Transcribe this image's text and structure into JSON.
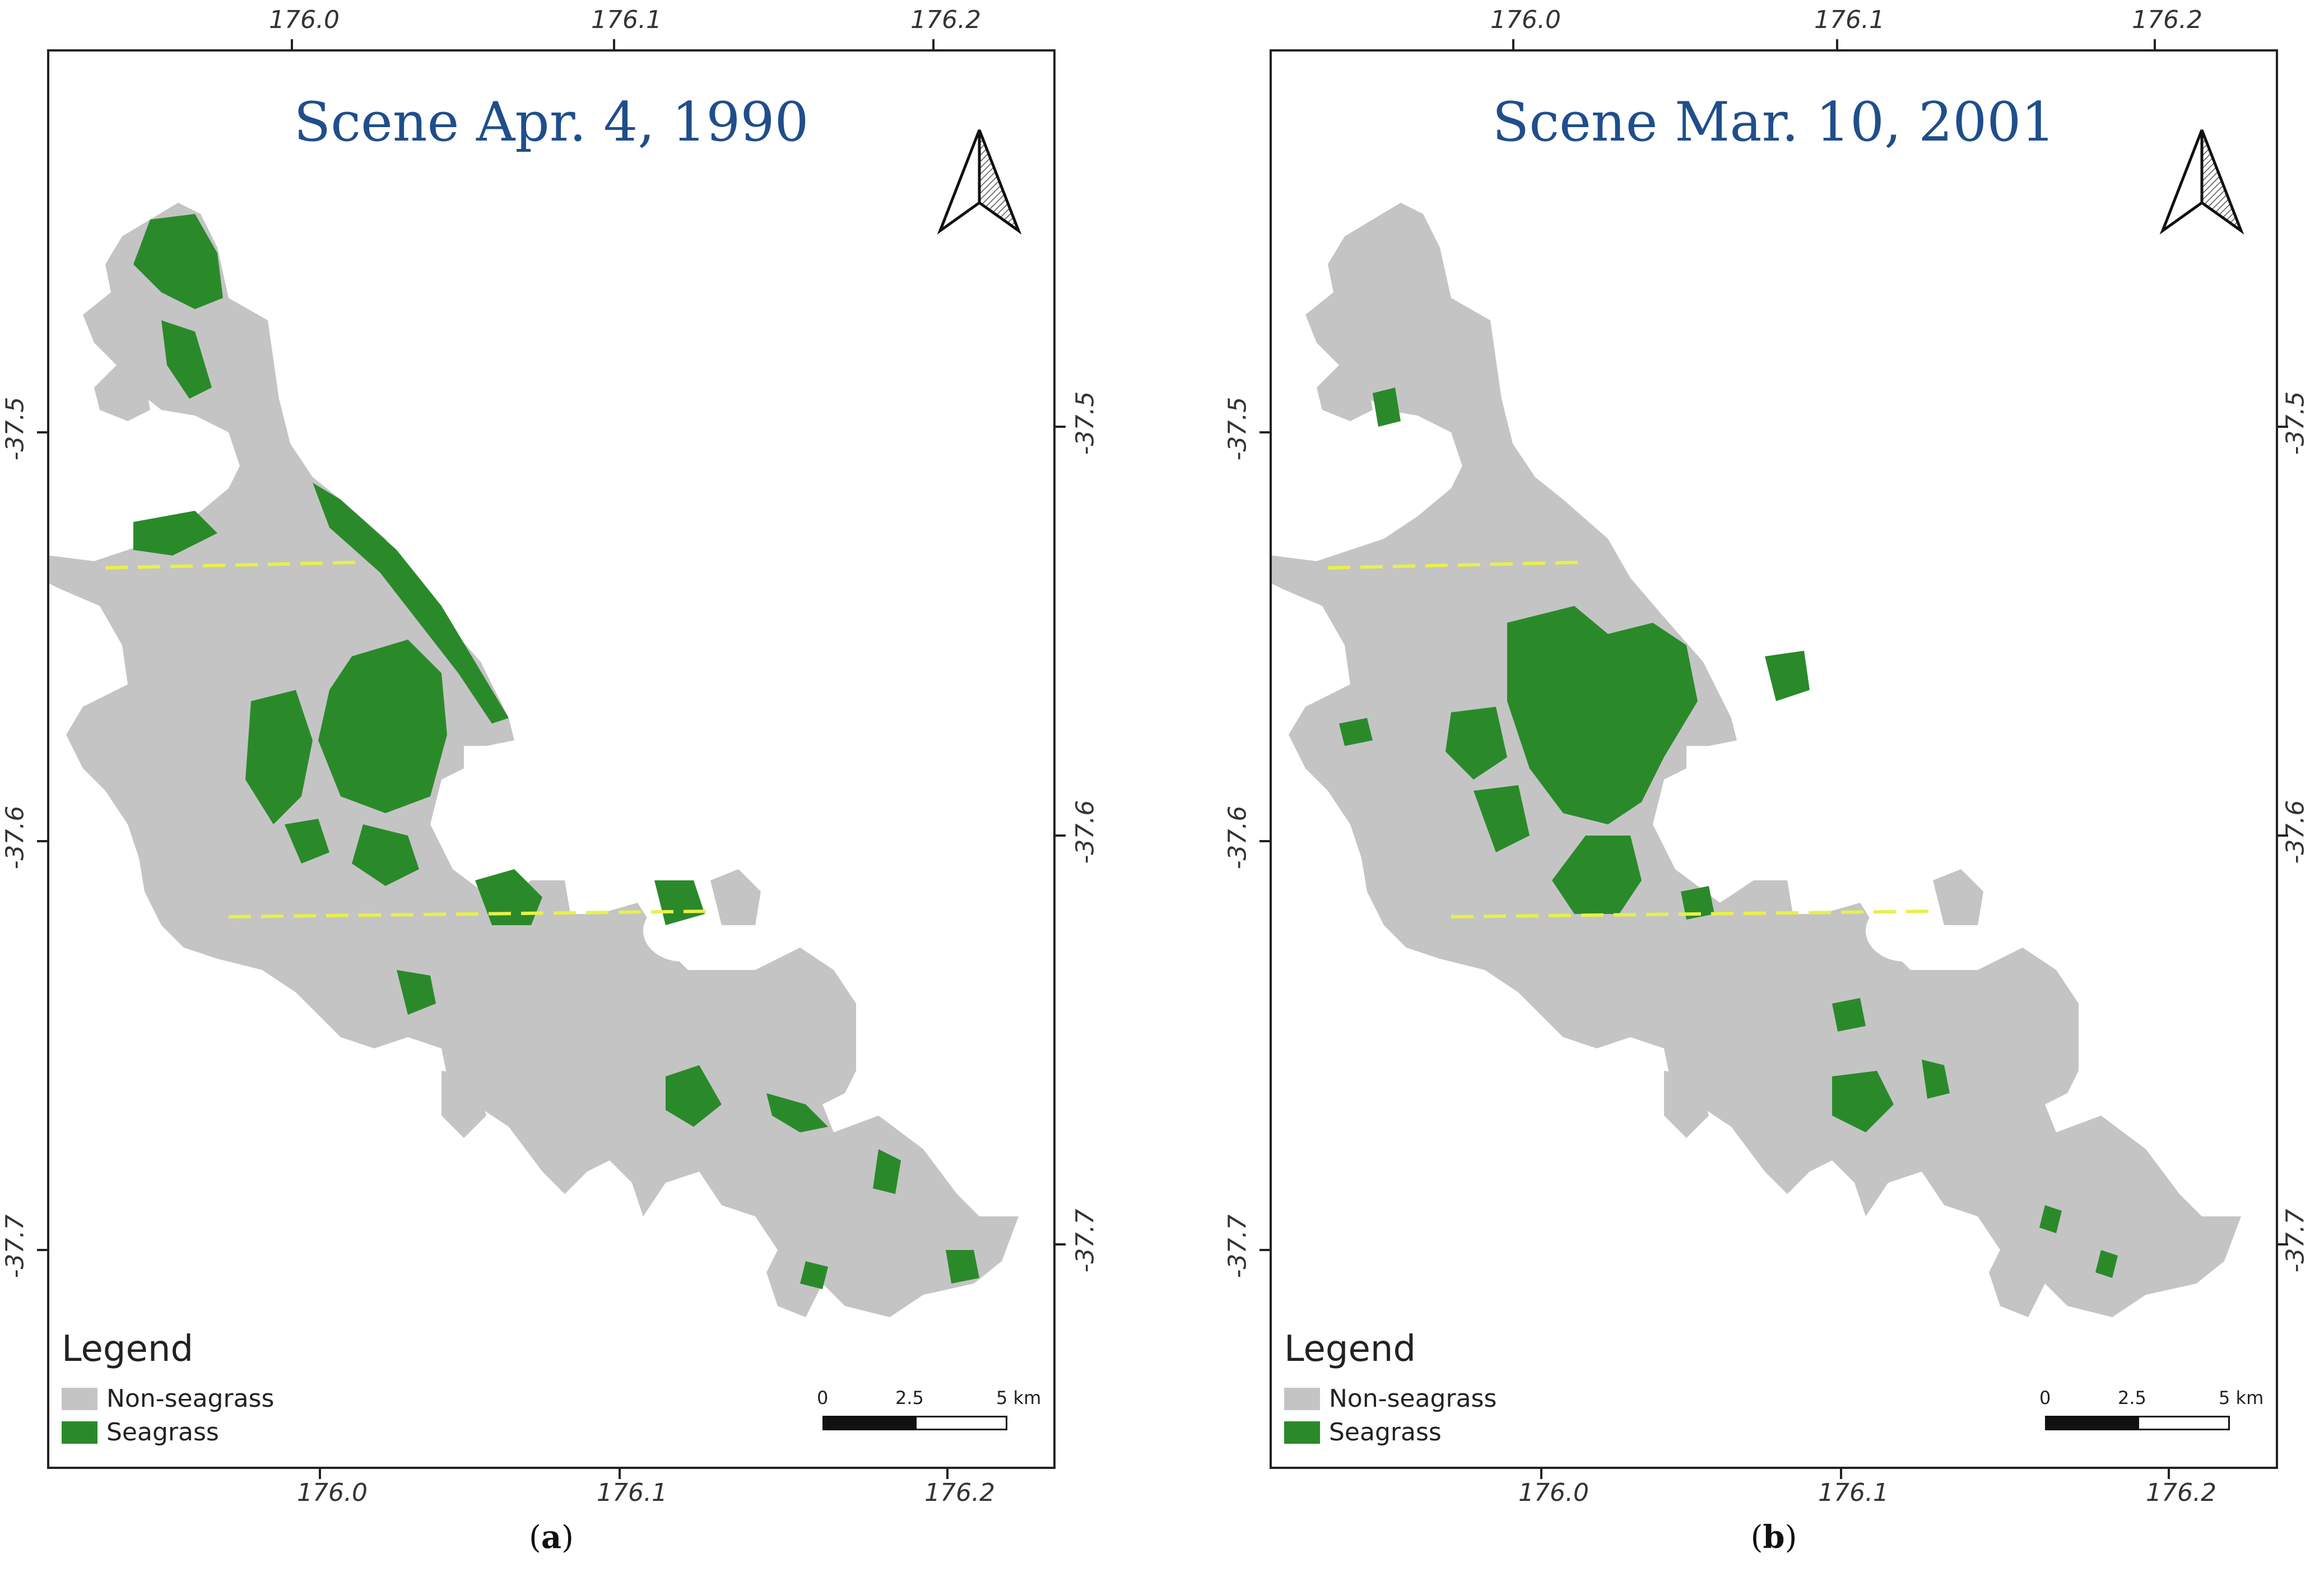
{
  "colors": {
    "non_seagrass": "#c4c4c4",
    "seagrass": "#2a8a2a",
    "transect": "#e8f04a",
    "title": "#1f4e8c",
    "frame": "#222222"
  },
  "panels": [
    {
      "title": "Scene Apr. 4, 1990",
      "caption": {
        "open": "(",
        "letter": "a",
        "close": ")"
      },
      "seagrass_extent": "high"
    },
    {
      "title": "Scene Mar. 10, 2001",
      "caption": {
        "open": "(",
        "letter": "b",
        "close": ")"
      },
      "seagrass_extent": "moderate"
    }
  ],
  "axes": {
    "x_ticks": [
      "176.0",
      "176.1",
      "176.2"
    ],
    "y_ticks": [
      "-37.5",
      "-37.6",
      "-37.7"
    ]
  },
  "legend": {
    "title": "Legend",
    "items": [
      {
        "label": "Non-seagrass",
        "icon": "swatch-gray"
      },
      {
        "label": "Seagrass",
        "icon": "swatch-green"
      }
    ]
  },
  "scale_bar": {
    "labels": [
      "0",
      "2.5",
      "5 km"
    ]
  },
  "north_arrow": {
    "icon": "north-arrow-icon"
  }
}
